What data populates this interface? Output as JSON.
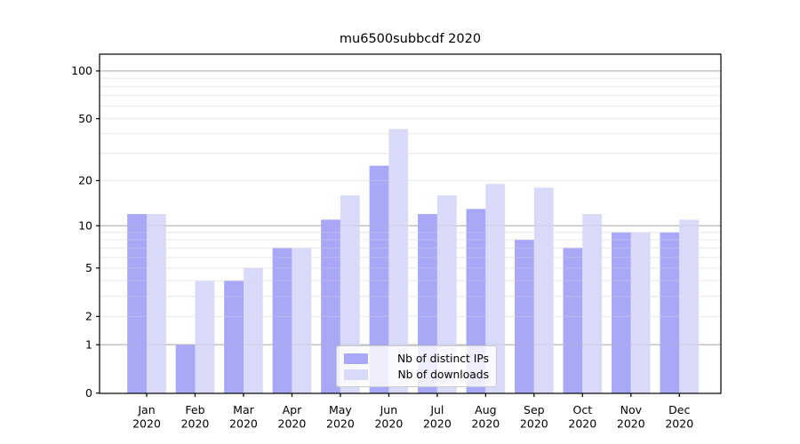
{
  "chart_data": {
    "type": "bar",
    "title": "mu6500subbcdf 2020",
    "categories": [
      "Jan",
      "Feb",
      "Mar",
      "Apr",
      "May",
      "Jun",
      "Jul",
      "Aug",
      "Sep",
      "Oct",
      "Nov",
      "Dec"
    ],
    "category_year": "2020",
    "series": [
      {
        "name": "Nb of distinct IPs",
        "color": "#a8a8f6",
        "values": [
          12,
          1,
          4,
          7,
          11,
          25,
          12,
          13,
          8,
          7,
          9,
          9
        ]
      },
      {
        "name": "Nb of downloads",
        "color": "#d9d9fa",
        "values": [
          12,
          4,
          5,
          7,
          16,
          43,
          16,
          19,
          18,
          12,
          9,
          11
        ]
      }
    ],
    "xlabel": "",
    "ylabel": "",
    "y_scale": "log10(value+1)",
    "ylim": [
      0,
      128
    ],
    "y_ticks": [
      0,
      1,
      2,
      5,
      10,
      20,
      50,
      100
    ],
    "y_tick_labels": [
      "0",
      "1",
      "2",
      "5",
      "10",
      "20",
      "50",
      "100"
    ],
    "major_gridlines": [
      1,
      10,
      100
    ],
    "minor_gridlines": [
      2,
      3,
      4,
      5,
      6,
      7,
      8,
      9,
      20,
      30,
      40,
      50,
      60,
      70,
      80,
      90
    ],
    "grid": true,
    "legend_position": "bottom-center"
  },
  "colors": {
    "background": "#ffffff",
    "axis": "#000000",
    "tick_label": "#000000",
    "major_grid": "#b3b3b3",
    "minor_grid": "#eaeaea",
    "legend_border": "#cccccc"
  }
}
